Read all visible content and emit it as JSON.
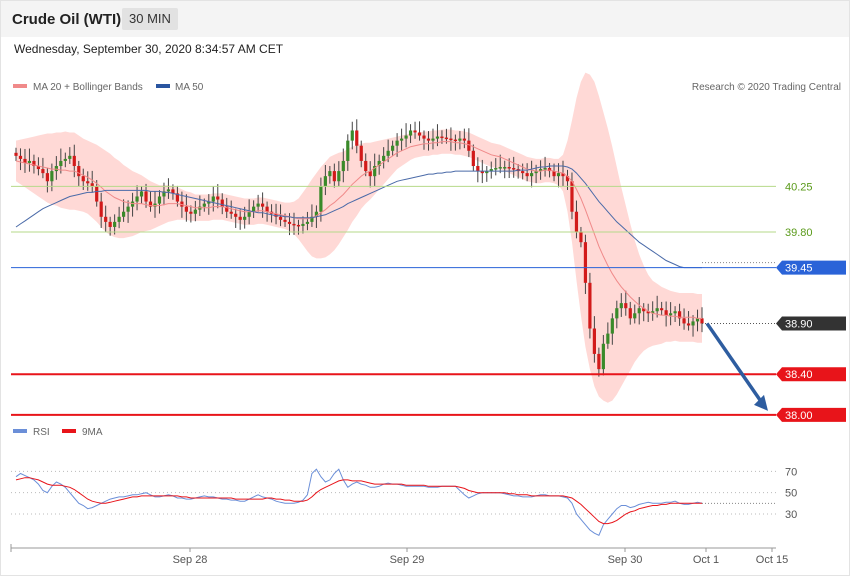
{
  "header": {
    "instrument": "Crude Oil (WTI)",
    "timeframe": "30 MIN",
    "timestamp": "Wednesday, September 30, 2020 8:34:57 AM CET"
  },
  "legend_top": {
    "ma20_bb": "MA 20 + Bollinger Bands",
    "ma50": "MA 50",
    "credit": "Research © 2020 Trading Central"
  },
  "legend_bottom": {
    "rsi": "RSI",
    "ma9": "9MA"
  },
  "colors": {
    "up_candle": "#3a8a2a",
    "down_candle": "#d21a1a",
    "ma20": "#f08a8a",
    "bollinger_fill": "#ffd9d6",
    "ma50": "#4a6aa8",
    "support": "#e8141a",
    "resistance_green": "#b6d98a",
    "pivot_blue": "#2a63d8",
    "current": "#333333",
    "arrow": "#2e5da0",
    "rsi": "#6b8fd8",
    "rsi_ma": "#e8141a"
  },
  "chart_data": [
    {
      "type": "candlestick",
      "x_tick_labels": [
        "Sep 28",
        "Sep 29",
        "Sep 30",
        "Oct 1",
        "Oct 15"
      ],
      "ylim": [
        37.9,
        41.1
      ],
      "levels": [
        {
          "name": "resistance-2",
          "value": 40.25,
          "label": "40.25",
          "style": "green"
        },
        {
          "name": "resistance-1",
          "value": 39.8,
          "label": "39.80",
          "style": "green"
        },
        {
          "name": "pivot",
          "value": 39.45,
          "label": "39.45",
          "style": "blue"
        },
        {
          "name": "current-price",
          "value": 38.9,
          "label": "38.90",
          "style": "current"
        },
        {
          "name": "support-1",
          "value": 38.4,
          "label": "38.40",
          "style": "red"
        },
        {
          "name": "support-2",
          "value": 38.0,
          "label": "38.00",
          "style": "red"
        }
      ],
      "projection": {
        "from": 38.9,
        "to": 38.0
      },
      "close_series": [
        40.55,
        40.52,
        40.48,
        40.5,
        40.45,
        40.42,
        40.38,
        40.3,
        40.4,
        40.45,
        40.5,
        40.52,
        40.55,
        40.45,
        40.35,
        40.3,
        40.28,
        40.25,
        40.1,
        39.95,
        39.9,
        39.85,
        39.9,
        39.95,
        40.0,
        40.05,
        40.1,
        40.15,
        40.2,
        40.1,
        40.05,
        40.08,
        40.15,
        40.2,
        40.22,
        40.18,
        40.1,
        40.05,
        40.0,
        39.98,
        40.02,
        40.05,
        40.08,
        40.1,
        40.15,
        40.12,
        40.05,
        40.0,
        39.98,
        39.95,
        39.92,
        39.95,
        40.0,
        40.05,
        40.08,
        40.05,
        40.0,
        39.98,
        39.95,
        39.92,
        39.9,
        39.88,
        39.87,
        39.86,
        39.88,
        39.9,
        39.95,
        40.0,
        40.25,
        40.35,
        40.4,
        40.3,
        40.4,
        40.5,
        40.7,
        40.8,
        40.65,
        40.5,
        40.4,
        40.35,
        40.45,
        40.5,
        40.55,
        40.6,
        40.65,
        40.7,
        40.72,
        40.75,
        40.8,
        40.78,
        40.75,
        40.72,
        40.7,
        40.72,
        40.74,
        40.73,
        40.72,
        40.71,
        40.7,
        40.72,
        40.7,
        40.6,
        40.45,
        40.4,
        40.38,
        40.4,
        40.42,
        40.43,
        40.44,
        40.44,
        40.43,
        40.42,
        40.4,
        40.38,
        40.35,
        40.38,
        40.4,
        40.42,
        40.43,
        40.4,
        40.35,
        40.38,
        40.35,
        40.3,
        40.0,
        39.8,
        39.7,
        39.3,
        38.85,
        38.6,
        38.45,
        38.7,
        38.8,
        38.95,
        39.05,
        39.1,
        39.05,
        38.95,
        39.0,
        39.05,
        39.02,
        39.0,
        39.02,
        39.05,
        39.03,
        38.98,
        39.0,
        39.02,
        38.95,
        38.9,
        38.88,
        38.92,
        38.95,
        38.9
      ],
      "ma20_series": [
        40.5,
        40.49,
        40.48,
        40.47,
        40.46,
        40.45,
        40.44,
        40.43,
        40.42,
        40.42,
        40.41,
        40.41,
        40.4,
        40.4,
        40.38,
        40.36,
        40.34,
        40.31,
        40.28,
        40.24,
        40.2,
        40.17,
        40.14,
        40.12,
        40.1,
        40.09,
        40.08,
        40.08,
        40.08,
        40.07,
        40.06,
        40.06,
        40.06,
        40.07,
        40.08,
        40.08,
        40.08,
        40.07,
        40.06,
        40.05,
        40.04,
        40.04,
        40.04,
        40.04,
        40.05,
        40.05,
        40.05,
        40.04,
        40.03,
        40.02,
        40.01,
        40.0,
        40.0,
        40.0,
        40.01,
        40.01,
        40.0,
        39.99,
        39.98,
        39.97,
        39.96,
        39.95,
        39.94,
        39.93,
        39.93,
        39.93,
        39.94,
        39.96,
        39.99,
        40.02,
        40.06,
        40.09,
        40.13,
        40.17,
        40.22,
        40.27,
        40.31,
        40.35,
        40.38,
        40.4,
        40.43,
        40.46,
        40.49,
        40.52,
        40.55,
        40.58,
        40.6,
        40.62,
        40.64,
        40.65,
        40.66,
        40.67,
        40.67,
        40.68,
        40.68,
        40.69,
        40.69,
        40.69,
        40.68,
        40.68,
        40.67,
        40.66,
        40.64,
        40.62,
        40.6,
        40.58,
        40.56,
        40.55,
        40.54,
        40.52,
        40.5,
        40.48,
        40.46,
        40.44,
        40.42,
        40.41,
        40.4,
        40.4,
        40.41,
        40.41,
        40.4,
        40.39,
        40.38,
        40.35,
        40.3,
        40.22,
        40.13,
        40.02,
        39.9,
        39.78,
        39.66,
        39.56,
        39.47,
        39.39,
        39.32,
        39.26,
        39.21,
        39.16,
        39.12,
        39.08,
        39.05,
        39.02,
        39.0,
        38.99,
        38.98,
        38.98,
        38.97,
        38.97,
        38.96,
        38.96,
        38.96,
        38.96,
        38.95,
        38.95
      ],
      "ma50_series": [
        39.85,
        39.88,
        39.91,
        39.94,
        39.97,
        40.0,
        40.03,
        40.05,
        40.07,
        40.09,
        40.11,
        40.13,
        40.15,
        40.16,
        40.17,
        40.18,
        40.19,
        40.19,
        40.2,
        40.2,
        40.21,
        40.21,
        40.21,
        40.21,
        40.21,
        40.21,
        40.21,
        40.21,
        40.21,
        40.21,
        40.2,
        40.2,
        40.2,
        40.19,
        40.19,
        40.18,
        40.17,
        40.16,
        40.15,
        40.14,
        40.13,
        40.12,
        40.11,
        40.1,
        40.09,
        40.08,
        40.07,
        40.06,
        40.05,
        40.04,
        40.03,
        40.02,
        40.01,
        40.0,
        39.99,
        39.99,
        39.98,
        39.97,
        39.96,
        39.96,
        39.95,
        39.95,
        39.94,
        39.94,
        39.94,
        39.94,
        39.94,
        39.95,
        39.96,
        39.97,
        39.99,
        40.01,
        40.03,
        40.05,
        40.08,
        40.1,
        40.12,
        40.14,
        40.16,
        40.18,
        40.2,
        40.22,
        40.24,
        40.26,
        40.28,
        40.3,
        40.31,
        40.32,
        40.33,
        40.34,
        40.35,
        40.36,
        40.37,
        40.37,
        40.38,
        40.38,
        40.39,
        40.39,
        40.4,
        40.4,
        40.4,
        40.4,
        40.4,
        40.4,
        40.4,
        40.4,
        40.4,
        40.4,
        40.4,
        40.4,
        40.4,
        40.4,
        40.41,
        40.41,
        40.41,
        40.42,
        40.43,
        40.44,
        40.44,
        40.45,
        40.45,
        40.45,
        40.45,
        40.44,
        40.42,
        40.38,
        40.33,
        40.28,
        40.22,
        40.16,
        40.1,
        40.05,
        40.0,
        39.95,
        39.9,
        39.86,
        39.82,
        39.78,
        39.74,
        39.7,
        39.67,
        39.64,
        39.61,
        39.58,
        39.55,
        39.52,
        39.5,
        39.48,
        39.46,
        39.45,
        39.45,
        39.45,
        39.45,
        39.45
      ],
      "bollinger_halfwidth_series": [
        0.2,
        0.22,
        0.24,
        0.26,
        0.28,
        0.3,
        0.32,
        0.34,
        0.35,
        0.36,
        0.37,
        0.38,
        0.38,
        0.38,
        0.37,
        0.36,
        0.36,
        0.37,
        0.38,
        0.39,
        0.4,
        0.4,
        0.39,
        0.38,
        0.36,
        0.34,
        0.32,
        0.3,
        0.28,
        0.26,
        0.24,
        0.22,
        0.2,
        0.19,
        0.18,
        0.17,
        0.16,
        0.15,
        0.14,
        0.14,
        0.13,
        0.13,
        0.13,
        0.13,
        0.13,
        0.13,
        0.13,
        0.13,
        0.13,
        0.13,
        0.13,
        0.13,
        0.13,
        0.13,
        0.13,
        0.13,
        0.13,
        0.13,
        0.13,
        0.13,
        0.13,
        0.14,
        0.16,
        0.2,
        0.26,
        0.32,
        0.38,
        0.42,
        0.45,
        0.47,
        0.48,
        0.47,
        0.45,
        0.42,
        0.4,
        0.37,
        0.35,
        0.32,
        0.3,
        0.28,
        0.26,
        0.24,
        0.22,
        0.2,
        0.18,
        0.16,
        0.15,
        0.14,
        0.13,
        0.12,
        0.12,
        0.12,
        0.12,
        0.12,
        0.12,
        0.12,
        0.12,
        0.12,
        0.12,
        0.12,
        0.12,
        0.12,
        0.12,
        0.12,
        0.12,
        0.12,
        0.12,
        0.12,
        0.12,
        0.12,
        0.12,
        0.12,
        0.12,
        0.12,
        0.12,
        0.12,
        0.12,
        0.12,
        0.12,
        0.12,
        0.12,
        0.13,
        0.18,
        0.35,
        0.6,
        0.9,
        1.15,
        1.35,
        1.45,
        1.5,
        1.48,
        1.42,
        1.35,
        1.25,
        1.12,
        0.98,
        0.85,
        0.72,
        0.6,
        0.5,
        0.42,
        0.36,
        0.32,
        0.3,
        0.28,
        0.26,
        0.25,
        0.24,
        0.24,
        0.24,
        0.24,
        0.24,
        0.24,
        0.24
      ]
    },
    {
      "type": "line",
      "title": "",
      "series": [
        {
          "name": "RSI",
          "values": [
            65,
            68,
            66,
            64,
            62,
            58,
            52,
            50,
            56,
            60,
            58,
            55,
            50,
            45,
            40,
            38,
            35,
            36,
            38,
            40,
            42,
            44,
            45,
            46,
            46,
            47,
            48,
            48,
            49,
            50,
            48,
            46,
            46,
            47,
            48,
            47,
            45,
            45,
            44,
            44,
            45,
            46,
            47,
            46,
            46,
            45,
            44,
            44,
            43,
            43,
            42,
            42,
            44,
            46,
            48,
            46,
            45,
            44,
            42,
            41,
            40,
            40,
            40,
            41,
            43,
            48,
            68,
            72,
            65,
            60,
            62,
            68,
            72,
            62,
            55,
            58,
            60,
            58,
            57,
            55,
            55,
            56,
            58,
            59,
            58,
            58,
            57,
            56,
            56,
            56,
            56,
            56,
            55,
            55,
            55,
            56,
            56,
            56,
            56,
            52,
            48,
            45,
            47,
            49,
            50,
            50,
            50,
            50,
            50,
            49,
            48,
            47,
            47,
            46,
            46,
            46,
            47,
            48,
            48,
            47,
            47,
            47,
            46,
            45,
            40,
            30,
            25,
            20,
            15,
            12,
            10,
            20,
            25,
            30,
            35,
            38,
            38,
            36,
            37,
            39,
            40,
            41,
            40,
            40,
            40,
            41,
            41,
            42,
            40,
            39,
            39,
            40,
            41,
            40
          ]
        },
        {
          "name": "9MA",
          "values": [
            62,
            63,
            64,
            64,
            63,
            62,
            60,
            58,
            57,
            57,
            57,
            56,
            55,
            53,
            50,
            47,
            44,
            42,
            41,
            40,
            40,
            41,
            42,
            43,
            44,
            45,
            46,
            46,
            47,
            47,
            47,
            47,
            47,
            47,
            47,
            47,
            47,
            46,
            46,
            45,
            45,
            45,
            45,
            45,
            45,
            45,
            45,
            45,
            45,
            44,
            44,
            44,
            44,
            44,
            44,
            44,
            45,
            45,
            44,
            44,
            43,
            43,
            42,
            42,
            42,
            43,
            46,
            50,
            53,
            55,
            57,
            59,
            61,
            62,
            62,
            61,
            61,
            61,
            60,
            59,
            58,
            58,
            58,
            58,
            58,
            58,
            58,
            57,
            57,
            57,
            57,
            57,
            56,
            56,
            56,
            56,
            56,
            56,
            56,
            55,
            54,
            52,
            51,
            50,
            50,
            50,
            50,
            50,
            50,
            50,
            49,
            49,
            48,
            48,
            48,
            47,
            47,
            47,
            47,
            47,
            47,
            47,
            47,
            46,
            45,
            42,
            39,
            35,
            31,
            27,
            23,
            21,
            21,
            22,
            24,
            27,
            30,
            32,
            33,
            35,
            36,
            37,
            38,
            38,
            39,
            39,
            40,
            40,
            40,
            40,
            40,
            40,
            40,
            40
          ]
        }
      ],
      "y_tick_labels": [
        "70",
        "50",
        "30"
      ],
      "ylim": [
        0,
        90
      ]
    }
  ]
}
